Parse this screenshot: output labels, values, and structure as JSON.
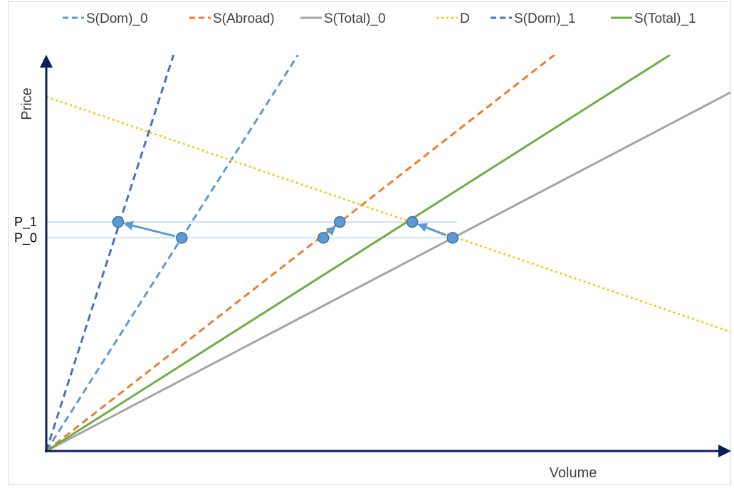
{
  "chart_data": {
    "type": "line",
    "title": "",
    "xlabel": "Volume",
    "ylabel": "Price",
    "xlim": [
      0,
      100
    ],
    "ylim": [
      0,
      100
    ],
    "grid": false,
    "axis_ticks": "none",
    "legend_position": "top",
    "series": [
      {
        "name": "S(Dom)_0",
        "color": "#5B9BD5",
        "style": "dashed",
        "x": [
          0,
          36.8
        ],
        "y": [
          0,
          100
        ]
      },
      {
        "name": "S(Abroad)",
        "color": "#ED7D31",
        "style": "dashed",
        "x": [
          0,
          74.3
        ],
        "y": [
          0,
          100
        ]
      },
      {
        "name": "S(Total)_0",
        "color": "#A5A5A5",
        "style": "solid",
        "x": [
          0,
          100
        ],
        "y": [
          0,
          90.5
        ]
      },
      {
        "name": "D",
        "color": "#FFC000",
        "style": "dotted",
        "x": [
          0,
          100
        ],
        "y": [
          89.4,
          30.1
        ]
      },
      {
        "name": "S(Dom)_1",
        "color": "#4472C4",
        "style": "dashed",
        "x": [
          0,
          18.6
        ],
        "y": [
          0,
          100
        ]
      },
      {
        "name": "S(Total)_1",
        "color": "#70AD47",
        "style": "solid",
        "x": [
          0,
          91.2
        ],
        "y": [
          0,
          100
        ]
      }
    ],
    "reference_lines": [
      {
        "label": "P_1",
        "y": 57.8
      },
      {
        "label": "P_0",
        "y": 53.8
      }
    ],
    "points": [
      {
        "x": 10.5,
        "y": 57.8
      },
      {
        "x": 19.8,
        "y": 53.8
      },
      {
        "x": 40.5,
        "y": 53.8
      },
      {
        "x": 42.9,
        "y": 57.8
      },
      {
        "x": 53.5,
        "y": 57.8
      },
      {
        "x": 59.4,
        "y": 53.8
      }
    ],
    "arrows": [
      {
        "from": [
          19.8,
          53.8
        ],
        "to": [
          10.5,
          57.8
        ]
      },
      {
        "from": [
          40.5,
          53.8
        ],
        "to": [
          42.9,
          57.8
        ]
      },
      {
        "from": [
          59.4,
          53.8
        ],
        "to": [
          53.5,
          57.8
        ]
      }
    ]
  }
}
